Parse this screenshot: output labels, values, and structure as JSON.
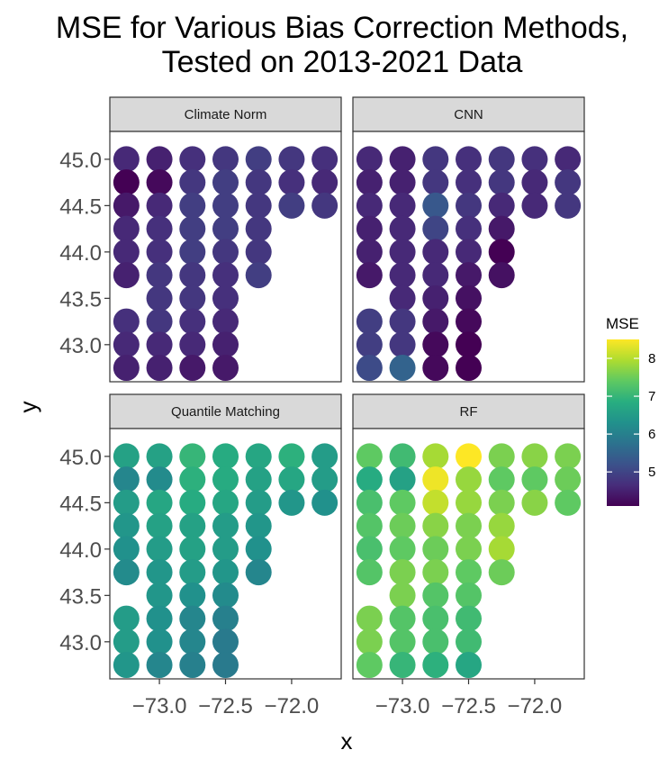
{
  "chart_data": {
    "type": "scatter",
    "title": "MSE for Various Bias Correction Methods,\nTested on 2013-2021 Data",
    "xlabel": "x",
    "ylabel": "y",
    "x_ticks": [
      -73.0,
      -72.5,
      -72.0
    ],
    "y_ticks": [
      43.0,
      43.5,
      44.0,
      44.5,
      45.0
    ],
    "xlim": [
      -73.375,
      -71.625
    ],
    "ylim": [
      42.6,
      45.3
    ],
    "grid": false,
    "legend": {
      "title": "MSE",
      "position": "right",
      "colormap": "viridis",
      "ticks": [
        5,
        6,
        7,
        8
      ],
      "range": [
        4.1,
        8.5
      ]
    },
    "x_grid": [
      -73.25,
      -73.0,
      -72.75,
      -72.5,
      -72.25,
      -72.0,
      -71.75
    ],
    "y_grid": [
      45.0,
      44.75,
      44.5,
      44.25,
      44.0,
      43.75,
      43.5,
      43.25,
      43.0,
      42.75
    ],
    "panels": [
      {
        "name": "Climate Norm",
        "mse": [
          [
            4.6,
            4.5,
            4.7,
            4.8,
            4.9,
            4.8,
            4.7
          ],
          [
            4.1,
            4.2,
            4.8,
            4.9,
            4.8,
            4.7,
            4.6
          ],
          [
            4.4,
            4.6,
            4.9,
            4.9,
            4.8,
            4.9,
            4.8
          ],
          [
            4.6,
            4.7,
            4.9,
            4.9,
            4.8,
            null,
            null
          ],
          [
            4.6,
            4.7,
            4.9,
            4.8,
            4.8,
            null,
            null
          ],
          [
            4.5,
            4.8,
            4.8,
            4.7,
            4.9,
            null,
            null
          ],
          [
            null,
            4.8,
            4.8,
            4.7,
            null,
            null,
            null
          ],
          [
            4.7,
            4.8,
            4.7,
            4.6,
            null,
            null,
            null
          ],
          [
            4.6,
            4.6,
            4.6,
            4.5,
            null,
            null,
            null
          ],
          [
            4.5,
            4.5,
            4.4,
            4.4,
            null,
            null,
            null
          ]
        ]
      },
      {
        "name": "CNN",
        "mse": [
          [
            4.6,
            4.5,
            4.8,
            4.7,
            4.8,
            4.7,
            4.6
          ],
          [
            4.5,
            4.5,
            4.8,
            4.7,
            4.8,
            4.6,
            4.8
          ],
          [
            4.6,
            4.6,
            5.3,
            4.8,
            4.6,
            4.6,
            4.8
          ],
          [
            4.5,
            4.6,
            5.0,
            4.7,
            4.4,
            null,
            null
          ],
          [
            4.5,
            4.6,
            4.6,
            4.6,
            4.1,
            null,
            null
          ],
          [
            4.4,
            4.6,
            4.6,
            4.4,
            4.3,
            null,
            null
          ],
          [
            null,
            4.6,
            4.5,
            4.3,
            null,
            null,
            null
          ],
          [
            4.9,
            4.8,
            4.4,
            4.2,
            null,
            null,
            null
          ],
          [
            4.9,
            4.8,
            4.2,
            4.1,
            null,
            null,
            null
          ],
          [
            5.1,
            5.5,
            4.2,
            4.1,
            null,
            null,
            null
          ]
        ]
      },
      {
        "name": "Quantile Matching",
        "mse": [
          [
            6.6,
            6.6,
            7.0,
            6.8,
            6.7,
            6.9,
            6.5
          ],
          [
            6.1,
            6.2,
            6.9,
            6.8,
            6.6,
            6.7,
            6.5
          ],
          [
            6.5,
            6.7,
            6.8,
            6.7,
            6.5,
            6.4,
            6.3
          ],
          [
            6.4,
            6.6,
            6.6,
            6.5,
            6.4,
            null,
            null
          ],
          [
            6.3,
            6.5,
            6.6,
            6.5,
            6.3,
            null,
            null
          ],
          [
            6.2,
            6.4,
            6.5,
            6.4,
            6.1,
            null,
            null
          ],
          [
            null,
            6.4,
            6.3,
            6.2,
            null,
            null,
            null
          ],
          [
            6.5,
            6.3,
            6.1,
            6.0,
            null,
            null,
            null
          ],
          [
            6.5,
            6.3,
            6.1,
            5.9,
            null,
            null,
            null
          ],
          [
            6.4,
            6.1,
            6.0,
            5.9,
            null,
            null,
            null
          ]
        ]
      },
      {
        "name": "RF",
        "mse": [
          [
            7.4,
            7.1,
            7.9,
            8.5,
            7.6,
            7.7,
            7.6
          ],
          [
            6.8,
            6.6,
            8.4,
            7.8,
            7.4,
            7.4,
            7.5
          ],
          [
            7.2,
            7.4,
            8.1,
            7.8,
            7.6,
            7.7,
            7.4
          ],
          [
            7.3,
            7.5,
            7.7,
            7.6,
            7.8,
            null,
            null
          ],
          [
            7.2,
            7.4,
            7.5,
            7.6,
            7.9,
            null,
            null
          ],
          [
            7.3,
            7.6,
            7.6,
            7.4,
            7.5,
            null,
            null
          ],
          [
            null,
            7.6,
            7.3,
            7.3,
            null,
            null,
            null
          ],
          [
            7.6,
            7.3,
            7.2,
            7.1,
            null,
            null,
            null
          ],
          [
            7.6,
            7.3,
            7.2,
            7.1,
            null,
            null,
            null
          ],
          [
            7.4,
            7.0,
            6.9,
            6.7,
            null,
            null,
            null
          ]
        ]
      }
    ]
  }
}
